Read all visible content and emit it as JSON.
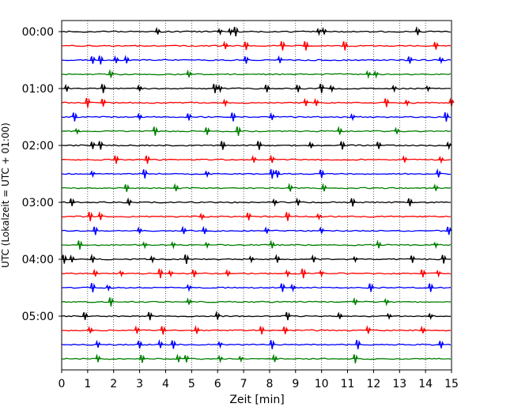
{
  "chart_data": {
    "type": "line",
    "title": "",
    "xlabel": "Zeit  [min]",
    "ylabel": "UTC (Lokalzeit = UTC + 01:00)",
    "xlim": [
      0,
      15
    ],
    "x_ticks": [
      "0",
      "1",
      "2",
      "3",
      "4",
      "5",
      "6",
      "7",
      "8",
      "9",
      "10",
      "11",
      "12",
      "13",
      "14",
      "15"
    ],
    "y_ticks": [
      "00:00",
      "01:00",
      "02:00",
      "03:00",
      "04:00",
      "05:00"
    ],
    "rows_per_hour": 4,
    "minutes_per_row": 15,
    "grid": "vertical dotted",
    "trace_colors": [
      "#000000",
      "#ff0000",
      "#0000ff",
      "#008000"
    ],
    "rows": [
      {
        "start": "00:00",
        "events": [
          3.7,
          6.1,
          6.5,
          6.7,
          9.9,
          10.1,
          13.7
        ]
      },
      {
        "start": "00:15",
        "events": [
          6.3,
          7.1,
          8.5,
          9.4,
          10.9,
          14.4
        ]
      },
      {
        "start": "00:30",
        "events": [
          1.2,
          1.5,
          2.1,
          2.5,
          7.1,
          8.4,
          13.4,
          14.6
        ]
      },
      {
        "start": "00:45",
        "events": [
          1.9,
          4.9,
          11.8,
          12.1
        ]
      },
      {
        "start": "01:00",
        "events": [
          0.2,
          1.6,
          3.0,
          5.9,
          6.1,
          7.9,
          9.1,
          10.0,
          10.4,
          12.8,
          14.1
        ]
      },
      {
        "start": "01:15",
        "events": [
          1.0,
          1.6,
          6.3,
          9.4,
          9.8,
          12.5,
          13.3,
          15.0
        ]
      },
      {
        "start": "01:30",
        "events": [
          0.5,
          3.0,
          4.9,
          6.6,
          8.1,
          11.2,
          14.8
        ]
      },
      {
        "start": "01:45",
        "events": [
          0.6,
          3.6,
          5.6,
          6.8,
          10.7,
          12.9
        ]
      },
      {
        "start": "02:00",
        "events": [
          1.2,
          1.5,
          6.2,
          7.6,
          9.6,
          10.8,
          12.2,
          14.9
        ]
      },
      {
        "start": "02:15",
        "events": [
          2.1,
          3.3,
          7.4,
          8.1,
          13.2,
          14.6
        ]
      },
      {
        "start": "02:30",
        "events": [
          1.2,
          3.2,
          5.6,
          8.1,
          8.3,
          10.0,
          14.5
        ]
      },
      {
        "start": "02:45",
        "events": [
          2.5,
          4.4,
          8.8,
          10.1,
          14.4
        ]
      },
      {
        "start": "03:00",
        "events": [
          0.4,
          2.6,
          8.2,
          9.1,
          11.2,
          13.4
        ]
      },
      {
        "start": "03:15",
        "events": [
          1.1,
          1.5,
          5.4,
          7.2,
          8.7,
          9.9
        ]
      },
      {
        "start": "03:30",
        "events": [
          1.3,
          3.0,
          4.7,
          5.5,
          7.9,
          10.0,
          14.9
        ]
      },
      {
        "start": "03:45",
        "events": [
          0.7,
          3.2,
          4.3,
          5.6,
          8.1,
          12.2,
          14.4
        ]
      },
      {
        "start": "04:00",
        "events": [
          0.1,
          0.4,
          1.2,
          3.5,
          4.8,
          7.3,
          8.3,
          9.7,
          11.3,
          13.5,
          14.7
        ]
      },
      {
        "start": "04:15",
        "events": [
          1.3,
          2.3,
          3.8,
          4.2,
          5.1,
          6.4,
          8.7,
          9.3,
          10.0,
          13.9,
          14.5
        ]
      },
      {
        "start": "04:30",
        "events": [
          1.2,
          1.8,
          4.9,
          8.5,
          8.9,
          11.9,
          14.2
        ]
      },
      {
        "start": "04:45",
        "events": [
          1.9,
          4.9,
          11.3,
          12.5
        ]
      },
      {
        "start": "05:00",
        "events": [
          0.9,
          3.4,
          6.0,
          8.7,
          10.7,
          12.6,
          14.2
        ]
      },
      {
        "start": "05:15",
        "events": [
          1.1,
          2.9,
          3.9,
          5.2,
          7.7,
          8.6,
          11.8,
          13.9
        ]
      },
      {
        "start": "05:30",
        "events": [
          1.4,
          3.0,
          3.8,
          4.3,
          6.1,
          8.1,
          11.4,
          14.6
        ]
      },
      {
        "start": "05:45",
        "events": [
          1.4,
          3.1,
          4.5,
          4.8,
          6.1,
          6.9,
          8.2,
          11.3
        ]
      }
    ]
  }
}
